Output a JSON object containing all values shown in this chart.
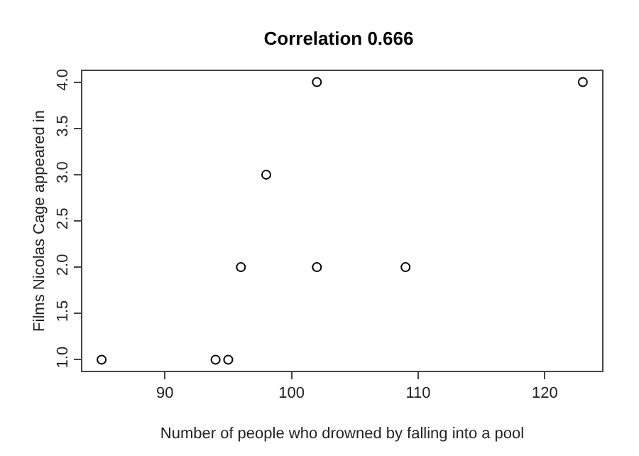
{
  "chart_data": {
    "type": "scatter",
    "title": "Correlation 0.666",
    "xlabel": "Number of people who drowned by falling into a pool",
    "ylabel": "Films Nicolas Cage appeared in",
    "x": [
      85,
      94,
      95,
      96,
      98,
      102,
      102,
      109,
      123
    ],
    "values": [
      1,
      1,
      1,
      2,
      3,
      4,
      2,
      2,
      4
    ],
    "color": "#000000",
    "marker": "circle",
    "xlim": [
      83.48,
      124.52
    ],
    "ylim": [
      0.88,
      4.12
    ],
    "xticks": [
      90,
      100,
      110,
      120
    ],
    "yticks": [
      {
        "value": 1,
        "label": "1.0"
      },
      {
        "value": 1.5,
        "label": "1.5"
      },
      {
        "value": 2,
        "label": "2.0"
      },
      {
        "value": 2.5,
        "label": "2.5"
      },
      {
        "value": 3,
        "label": "3.0"
      },
      {
        "value": 3.5,
        "label": "3.5"
      },
      {
        "value": 4,
        "label": "4.0"
      }
    ],
    "grid": false,
    "legend": false
  }
}
